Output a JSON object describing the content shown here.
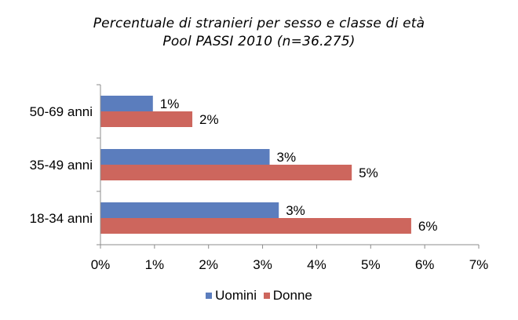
{
  "chart_data": {
    "type": "bar",
    "orientation": "horizontal",
    "title": "Percentuale di stranieri per sesso e classe di età",
    "subtitle": "Pool PASSI 2010 (n=36.275)",
    "categories": [
      "50-69 anni",
      "35-49 anni",
      "18-34 anni"
    ],
    "series": [
      {
        "name": "Uomini",
        "color": "#5b7dbd",
        "values": [
          0.97,
          3.13,
          3.3
        ],
        "labels": [
          "1%",
          "3%",
          "3%"
        ]
      },
      {
        "name": "Donne",
        "color": "#cd665d",
        "values": [
          1.7,
          4.65,
          5.75
        ],
        "labels": [
          "2%",
          "5%",
          "6%"
        ]
      }
    ],
    "xlim": [
      0,
      7
    ],
    "xticks": [
      "0%",
      "1%",
      "2%",
      "3%",
      "4%",
      "5%",
      "6%",
      "7%"
    ],
    "xlabel": "",
    "ylabel": "",
    "grid": false,
    "legend_position": "bottom"
  }
}
